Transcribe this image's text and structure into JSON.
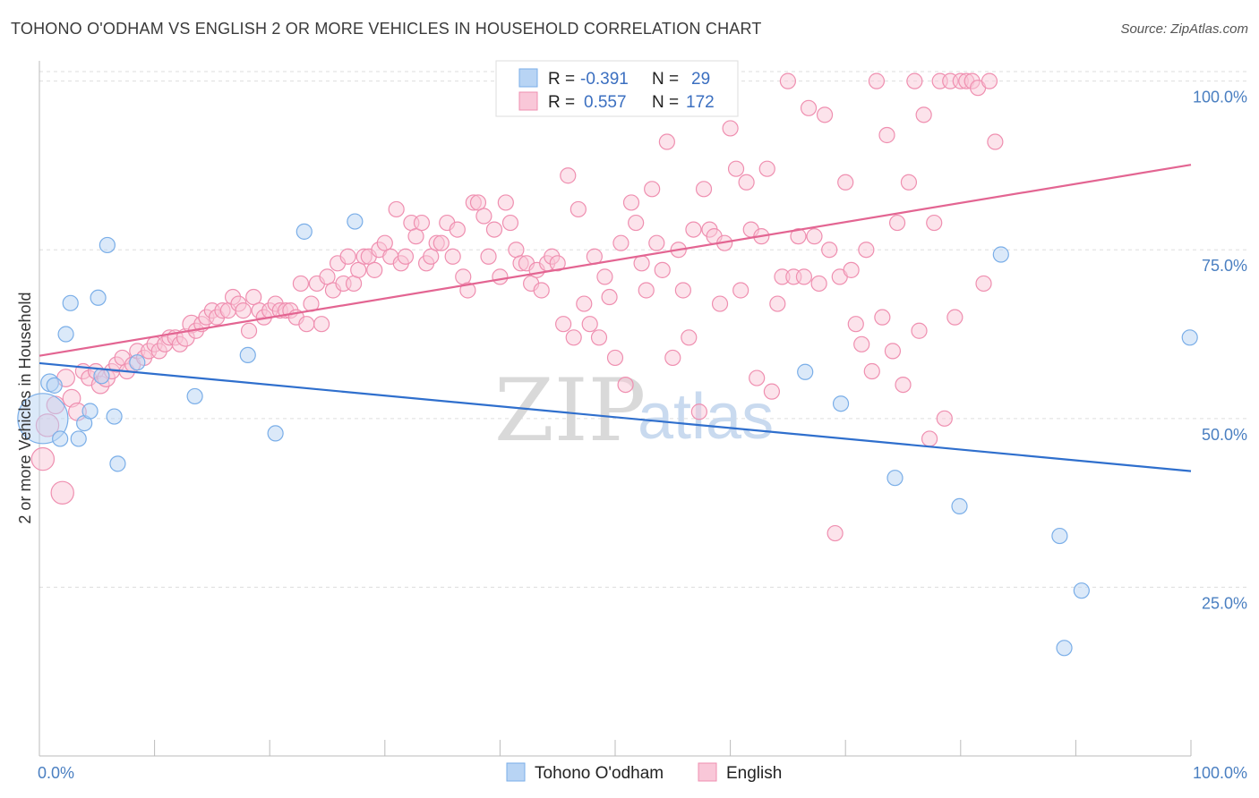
{
  "chart_data": {
    "type": "scatter",
    "title": "TOHONO O'ODHAM VS ENGLISH 2 OR MORE VEHICLES IN HOUSEHOLD CORRELATION CHART",
    "source": "Source: ZipAtlas.com",
    "xlabel": "",
    "ylabel": "2 or more Vehicles in Household",
    "xlim": [
      0,
      100
    ],
    "ylim": [
      0,
      103
    ],
    "x_tick_labels": [
      "0.0%",
      "100.0%"
    ],
    "y_ticks": [
      25,
      50,
      75,
      100
    ],
    "y_tick_labels": [
      "25.0%",
      "50.0%",
      "75.0%",
      "100.0%"
    ],
    "watermark": [
      "ZIP",
      "atlas"
    ],
    "colors": {
      "tohono": "#7aaee8",
      "tohono_fill": "#b8d4f4",
      "tohono_line": "#2f6fcd",
      "english": "#ef8fb0",
      "english_fill": "#f9c7d8",
      "english_line": "#e36592"
    },
    "legend": {
      "position": "top-center",
      "rows": [
        {
          "series": "Tohono O'odham",
          "r_label": "R =",
          "r": "-0.391",
          "n_label": "N =",
          "n": "29"
        },
        {
          "series": "English",
          "r_label": "R =",
          "r": "0.557",
          "n_label": "N =",
          "n": "172"
        }
      ]
    },
    "series": [
      {
        "name": "Tohono O'odham",
        "trend": {
          "x": [
            0,
            100
          ],
          "y": [
            58.2,
            42.2
          ]
        },
        "points": [
          [
            0.3,
            50,
            40
          ],
          [
            0.9,
            55.3,
            14
          ],
          [
            1.3,
            54.9,
            12
          ],
          [
            1.8,
            47,
            12
          ],
          [
            2.3,
            62.5,
            12
          ],
          [
            2.7,
            67.1,
            12
          ],
          [
            3.4,
            47,
            12
          ],
          [
            3.9,
            49.3,
            12
          ],
          [
            4.4,
            51.1,
            12
          ],
          [
            5.1,
            67.9,
            12
          ],
          [
            5.4,
            56.3,
            12
          ],
          [
            5.9,
            75.7,
            12
          ],
          [
            6.5,
            50.3,
            12
          ],
          [
            6.8,
            43.3,
            12
          ],
          [
            8.5,
            58.3,
            12
          ],
          [
            13.5,
            53.3,
            12
          ],
          [
            18.1,
            59.4,
            12
          ],
          [
            20.5,
            47.8,
            12
          ],
          [
            23,
            77.7,
            12
          ],
          [
            27.4,
            79.2,
            12
          ],
          [
            66.5,
            56.9,
            12
          ],
          [
            69.6,
            52.2,
            12
          ],
          [
            74.3,
            41.2,
            12
          ],
          [
            79.9,
            37,
            12
          ],
          [
            83.5,
            74.3,
            12
          ],
          [
            88.6,
            32.6,
            12
          ],
          [
            89,
            16,
            12
          ],
          [
            90.5,
            24.5,
            12
          ],
          [
            99.9,
            62,
            12
          ]
        ]
      },
      {
        "name": "English",
        "trend": {
          "x": [
            0,
            100
          ],
          "y": [
            59.3,
            87.6
          ]
        },
        "points": [
          [
            0.3,
            44,
            18
          ],
          [
            0.7,
            49,
            18
          ],
          [
            1.4,
            52,
            14
          ],
          [
            2,
            39,
            18
          ],
          [
            2.3,
            56,
            14
          ],
          [
            2.8,
            53,
            14
          ],
          [
            3.3,
            51,
            14
          ],
          [
            3.8,
            57,
            12
          ],
          [
            4.3,
            56,
            12
          ],
          [
            4.9,
            57,
            12
          ],
          [
            5.3,
            55,
            14
          ],
          [
            5.8,
            56,
            14
          ],
          [
            6.3,
            57,
            12
          ],
          [
            6.7,
            58,
            12
          ],
          [
            7.2,
            59,
            12
          ],
          [
            7.6,
            57,
            12
          ],
          [
            8.1,
            58,
            12
          ],
          [
            8.5,
            60,
            12
          ],
          [
            9.1,
            59,
            12
          ],
          [
            9.5,
            60,
            12
          ],
          [
            10,
            61,
            12
          ],
          [
            10.4,
            60,
            12
          ],
          [
            10.9,
            61,
            12
          ],
          [
            11.3,
            62,
            12
          ],
          [
            11.8,
            62,
            12
          ],
          [
            12.2,
            61,
            12
          ],
          [
            12.7,
            62,
            14
          ],
          [
            13.2,
            64,
            14
          ],
          [
            13.6,
            63,
            12
          ],
          [
            14.1,
            64,
            12
          ],
          [
            14.5,
            65,
            12
          ],
          [
            15,
            66,
            12
          ],
          [
            15.4,
            65,
            12
          ],
          [
            15.9,
            66,
            12
          ],
          [
            16.4,
            66,
            12
          ],
          [
            16.8,
            68,
            12
          ],
          [
            17.3,
            67,
            12
          ],
          [
            17.7,
            66,
            12
          ],
          [
            18.2,
            63,
            12
          ],
          [
            18.6,
            68,
            12
          ],
          [
            19.1,
            66,
            12
          ],
          [
            19.5,
            65,
            12
          ],
          [
            20,
            66,
            12
          ],
          [
            20.5,
            67,
            12
          ],
          [
            20.9,
            66,
            12
          ],
          [
            21.4,
            66,
            12
          ],
          [
            21.8,
            66,
            12
          ],
          [
            22.3,
            65,
            12
          ],
          [
            22.7,
            70,
            12
          ],
          [
            23.2,
            64,
            12
          ],
          [
            23.6,
            67,
            12
          ],
          [
            24.1,
            70,
            12
          ],
          [
            24.5,
            64,
            12
          ],
          [
            25,
            71,
            12
          ],
          [
            25.5,
            69,
            12
          ],
          [
            25.9,
            73,
            12
          ],
          [
            26.4,
            70,
            12
          ],
          [
            26.8,
            74,
            12
          ],
          [
            27.3,
            70,
            12
          ],
          [
            27.7,
            72,
            12
          ],
          [
            28.2,
            74,
            12
          ],
          [
            28.6,
            74,
            12
          ],
          [
            29.1,
            72,
            12
          ],
          [
            29.5,
            75,
            12
          ],
          [
            30,
            76,
            12
          ],
          [
            30.5,
            74,
            12
          ],
          [
            31,
            81,
            12
          ],
          [
            31.4,
            73,
            12
          ],
          [
            31.8,
            74,
            12
          ],
          [
            32.3,
            79,
            12
          ],
          [
            32.7,
            77,
            12
          ],
          [
            33.2,
            79,
            12
          ],
          [
            33.6,
            73,
            12
          ],
          [
            34,
            74,
            12
          ],
          [
            34.5,
            76,
            12
          ],
          [
            34.9,
            76,
            12
          ],
          [
            35.4,
            79,
            12
          ],
          [
            35.9,
            74,
            12
          ],
          [
            36.3,
            78,
            12
          ],
          [
            36.8,
            71,
            12
          ],
          [
            37.2,
            69,
            12
          ],
          [
            37.7,
            82,
            12
          ],
          [
            38.1,
            82,
            12
          ],
          [
            38.6,
            80,
            12
          ],
          [
            39,
            74,
            12
          ],
          [
            39.5,
            78,
            12
          ],
          [
            40,
            71,
            12
          ],
          [
            40.5,
            82,
            12
          ],
          [
            40.9,
            79,
            12
          ],
          [
            41.4,
            75,
            12
          ],
          [
            41.8,
            73,
            12
          ],
          [
            42.3,
            73,
            12
          ],
          [
            42.7,
            70,
            12
          ],
          [
            43.2,
            72,
            12
          ],
          [
            43.6,
            69,
            12
          ],
          [
            44.1,
            73,
            12
          ],
          [
            44.5,
            74,
            12
          ],
          [
            45,
            73,
            12
          ],
          [
            45.5,
            64,
            12
          ],
          [
            45.9,
            86,
            12
          ],
          [
            46.4,
            62,
            12
          ],
          [
            46.8,
            81,
            12
          ],
          [
            47.3,
            67,
            12
          ],
          [
            47.8,
            64,
            12
          ],
          [
            48.2,
            74,
            12
          ],
          [
            48.6,
            62,
            12
          ],
          [
            49.1,
            71,
            12
          ],
          [
            49.5,
            68,
            12
          ],
          [
            50,
            59,
            12
          ],
          [
            50.5,
            76,
            12
          ],
          [
            50.9,
            55,
            12
          ],
          [
            51.4,
            82,
            12
          ],
          [
            51.8,
            79,
            12
          ],
          [
            52.3,
            73,
            12
          ],
          [
            52.7,
            69,
            12
          ],
          [
            53.2,
            84,
            12
          ],
          [
            53.6,
            76,
            12
          ],
          [
            54.1,
            72,
            12
          ],
          [
            54.5,
            91,
            12
          ],
          [
            55,
            59,
            12
          ],
          [
            55.5,
            75,
            12
          ],
          [
            55.9,
            69,
            12
          ],
          [
            56.4,
            62,
            12
          ],
          [
            56.8,
            78,
            12
          ],
          [
            57.3,
            51,
            12
          ],
          [
            57.7,
            84,
            12
          ],
          [
            58.2,
            78,
            12
          ],
          [
            58.6,
            77,
            12
          ],
          [
            59.1,
            67,
            12
          ],
          [
            59.5,
            76,
            12
          ],
          [
            60,
            93,
            12
          ],
          [
            60.5,
            87,
            12
          ],
          [
            60.9,
            69,
            12
          ],
          [
            61.4,
            85,
            12
          ],
          [
            61.8,
            78,
            12
          ],
          [
            62.3,
            56,
            12
          ],
          [
            62.7,
            77,
            12
          ],
          [
            63.2,
            87,
            12
          ],
          [
            63.6,
            54,
            12
          ],
          [
            64.1,
            67,
            12
          ],
          [
            64.5,
            71,
            12
          ],
          [
            65,
            100,
            12
          ],
          [
            65.5,
            71,
            12
          ],
          [
            65.9,
            77,
            12
          ],
          [
            66.4,
            71,
            12
          ],
          [
            66.8,
            96,
            12
          ],
          [
            67.3,
            77,
            12
          ],
          [
            67.7,
            70,
            12
          ],
          [
            68.2,
            95,
            12
          ],
          [
            68.6,
            75,
            12
          ],
          [
            69.1,
            33,
            12
          ],
          [
            69.5,
            71,
            12
          ],
          [
            70,
            85,
            12
          ],
          [
            70.5,
            72,
            12
          ],
          [
            70.9,
            64,
            12
          ],
          [
            71.4,
            61,
            12
          ],
          [
            71.8,
            75,
            12
          ],
          [
            72.3,
            57,
            12
          ],
          [
            72.7,
            100,
            12
          ],
          [
            73.2,
            65,
            12
          ],
          [
            73.6,
            92,
            12
          ],
          [
            74.1,
            60,
            12
          ],
          [
            74.5,
            79,
            12
          ],
          [
            75,
            55,
            12
          ],
          [
            75.5,
            85,
            12
          ],
          [
            76,
            100,
            12
          ],
          [
            76.4,
            63,
            12
          ],
          [
            76.8,
            95,
            12
          ],
          [
            77.3,
            47,
            12
          ],
          [
            77.7,
            79,
            12
          ],
          [
            78.2,
            100,
            12
          ],
          [
            78.6,
            50,
            12
          ],
          [
            79.1,
            100,
            12
          ],
          [
            79.5,
            65,
            12
          ],
          [
            80,
            100,
            12
          ],
          [
            80.5,
            100,
            12
          ],
          [
            81,
            100,
            12
          ],
          [
            81.5,
            99,
            12
          ],
          [
            82,
            70,
            12
          ],
          [
            82.5,
            100,
            12
          ],
          [
            83,
            91,
            12
          ]
        ]
      }
    ]
  }
}
